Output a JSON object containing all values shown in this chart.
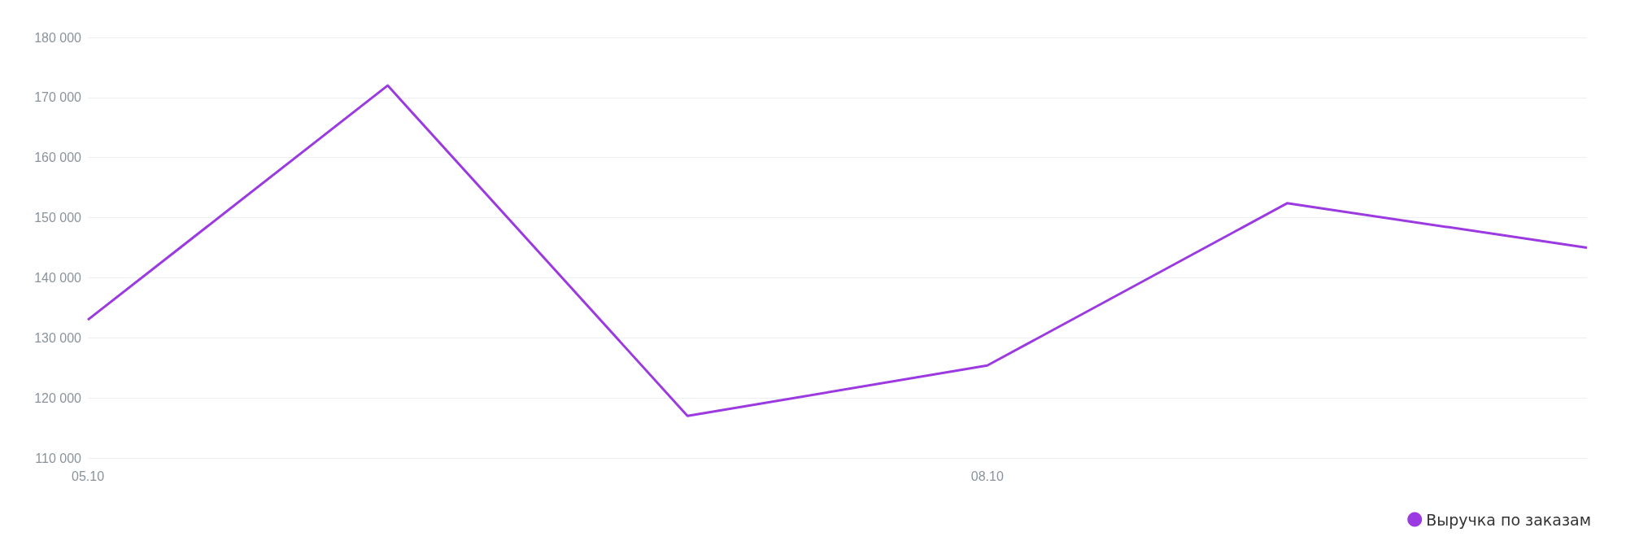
{
  "chart_data": {
    "type": "line",
    "categories": [
      "05.10",
      null,
      null,
      "08.10",
      null,
      null
    ],
    "series": [
      {
        "name": "Выручка по заказам",
        "color": "#9b3ae0",
        "values": [
          133000,
          172000,
          117000,
          125400,
          152400,
          145000
        ]
      }
    ],
    "ylim": [
      110000,
      180000
    ],
    "yticks": [
      {
        "value": 110000,
        "label": "110 000"
      },
      {
        "value": 120000,
        "label": "120 000"
      },
      {
        "value": 130000,
        "label": "130 000"
      },
      {
        "value": 140000,
        "label": "140 000"
      },
      {
        "value": 150000,
        "label": "150 000"
      },
      {
        "value": 160000,
        "label": "160 000"
      },
      {
        "value": 170000,
        "label": "170 000"
      },
      {
        "value": 180000,
        "label": "180 000"
      }
    ],
    "grid": "y",
    "legend": "bottom right",
    "marker": "none",
    "line_style": "solid"
  }
}
